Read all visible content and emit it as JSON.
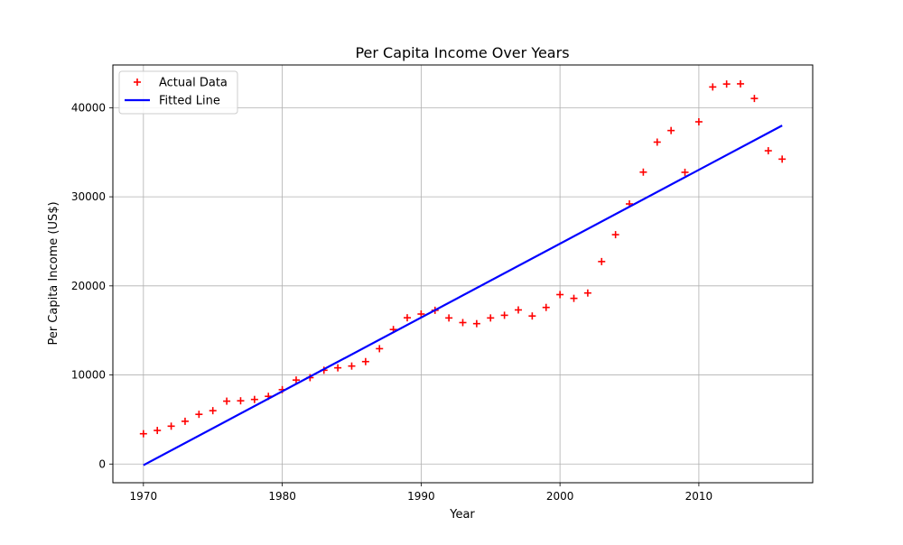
{
  "chart_data": {
    "type": "scatter",
    "title": "Per Capita Income Over Years",
    "xlabel": "Year",
    "ylabel": "Per Capita Income (US$)",
    "xlim": [
      1967.8,
      2018.2
    ],
    "ylim": [
      -2100,
      44800
    ],
    "xticks": [
      1970,
      1980,
      1990,
      2000,
      2010
    ],
    "yticks": [
      0,
      10000,
      20000,
      30000,
      40000
    ],
    "grid": true,
    "legend_position": "top-left",
    "series": [
      {
        "name": "Actual Data",
        "kind": "scatter",
        "marker": "+",
        "color": "#ff0000",
        "x": [
          1970,
          1971,
          1972,
          1973,
          1974,
          1975,
          1976,
          1977,
          1978,
          1979,
          1980,
          1981,
          1982,
          1983,
          1984,
          1985,
          1986,
          1987,
          1988,
          1989,
          1990,
          1991,
          1992,
          1993,
          1994,
          1995,
          1996,
          1997,
          1998,
          1999,
          2000,
          2001,
          2002,
          2003,
          2004,
          2005,
          2006,
          2007,
          2008,
          2009,
          2010,
          2011,
          2012,
          2013,
          2014,
          2015,
          2016
        ],
        "y": [
          3400,
          3770,
          4250,
          4800,
          5580,
          5990,
          7060,
          7100,
          7250,
          7600,
          8350,
          9430,
          9700,
          10530,
          10800,
          11000,
          11500,
          12950,
          15100,
          16420,
          16840,
          17260,
          16400,
          15880,
          15760,
          16400,
          16700,
          17300,
          16620,
          17580,
          19020,
          18600,
          19200,
          22730,
          25750,
          29200,
          32770,
          36140,
          37440,
          32750,
          38420,
          42330,
          42660,
          42680,
          41040,
          35170,
          34230
        ]
      },
      {
        "name": "Fitted Line",
        "kind": "line",
        "color": "#0000ff",
        "x": [
          1970,
          2016
        ],
        "y": [
          -130,
          38000
        ]
      }
    ]
  }
}
